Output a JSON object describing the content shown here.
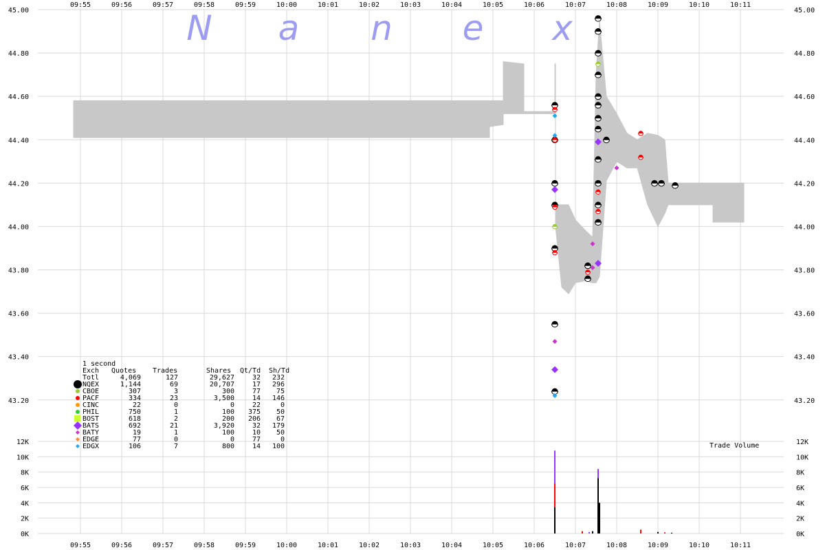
{
  "chart_data": {
    "type": "scatter",
    "title": "",
    "watermark": [
      "N",
      "a",
      "n",
      "e",
      "x"
    ],
    "x_times": [
      "09:55",
      "09:56",
      "09:57",
      "09:58",
      "09:59",
      "10:00",
      "10:01",
      "10:02",
      "10:03",
      "10:04",
      "10:05",
      "10:06",
      "10:07",
      "10:08",
      "10:09",
      "10:10",
      "10:11"
    ],
    "price_axis": {
      "ylim": [
        43.12,
        45.0
      ],
      "ticks": [
        "45.00",
        "44.80",
        "44.60",
        "44.40",
        "44.20",
        "44.00",
        "43.80",
        "43.60",
        "43.40",
        "43.20"
      ]
    },
    "volume_axis": {
      "label": "Trade Volume",
      "ylim": [
        0,
        12000
      ],
      "ticks": [
        "12K",
        "10K",
        "8K",
        "6K",
        "4K",
        "2K",
        "0K"
      ]
    },
    "grid": true,
    "colors": {
      "nbbo_band": "#c8c8c8",
      "grid": "#d8d8d8",
      "watermark": "#9c9cf0",
      "NQEX": "#000000",
      "PACF": "#ff0000",
      "BATS": "#9933ff",
      "BATY": "#cc33cc",
      "EDGX": "#22aaee",
      "CBOE": "#99cc33",
      "PHIL": "#33cc33",
      "BOST": "#ccff33",
      "CINC": "#ff9900",
      "EDGE": "#ff8833"
    },
    "nbbo_band": [
      [
        "09:54:50",
        44.41,
        44.58
      ],
      [
        "10:04:55",
        44.41,
        44.58
      ],
      [
        "10:04:55",
        44.46,
        44.58
      ],
      [
        "10:05:15",
        44.47,
        44.58
      ],
      [
        "10:05:15",
        44.52,
        44.76
      ],
      [
        "10:05:45",
        44.52,
        44.75
      ],
      [
        "10:05:45",
        44.52,
        44.53
      ],
      [
        "10:06:30",
        44.52,
        44.53
      ],
      [
        "10:06:30",
        44.52,
        44.75
      ],
      [
        "10:06:31",
        44.52,
        44.75
      ],
      [
        "10:06:31",
        44.0,
        44.1
      ],
      [
        "10:06:40",
        43.72,
        44.1
      ],
      [
        "10:06:50",
        43.69,
        44.1
      ],
      [
        "10:07:00",
        43.74,
        44.03
      ],
      [
        "10:07:15",
        43.75,
        43.98
      ],
      [
        "10:07:25",
        43.74,
        43.95
      ],
      [
        "10:07:30",
        43.74,
        44.7
      ],
      [
        "10:07:35",
        43.77,
        44.95
      ],
      [
        "10:07:45",
        44.21,
        44.6
      ],
      [
        "10:08:00",
        44.3,
        44.52
      ],
      [
        "10:08:15",
        44.27,
        44.43
      ],
      [
        "10:08:30",
        44.27,
        44.4
      ],
      [
        "10:08:45",
        44.1,
        44.43
      ],
      [
        "10:09:00",
        44.0,
        44.42
      ],
      [
        "10:09:10",
        44.06,
        44.4
      ],
      [
        "10:09:15",
        44.1,
        44.2
      ],
      [
        "10:10:20",
        44.1,
        44.2
      ],
      [
        "10:10:20",
        44.02,
        44.2
      ],
      [
        "10:11:05",
        44.02,
        44.2
      ]
    ],
    "series": [
      {
        "name": "NQEX",
        "points": [
          [
            "10:06:30",
            44.56
          ],
          [
            "10:06:30",
            44.4
          ],
          [
            "10:06:30",
            44.2
          ],
          [
            "10:06:30",
            44.1
          ],
          [
            "10:06:30",
            43.9
          ],
          [
            "10:06:30",
            43.55
          ],
          [
            "10:06:30",
            43.24
          ],
          [
            "10:07:33",
            44.96
          ],
          [
            "10:07:33",
            44.9
          ],
          [
            "10:07:33",
            44.8
          ],
          [
            "10:07:33",
            44.7
          ],
          [
            "10:07:33",
            44.6
          ],
          [
            "10:07:33",
            44.56
          ],
          [
            "10:07:33",
            44.5
          ],
          [
            "10:07:33",
            44.45
          ],
          [
            "10:07:33",
            44.31
          ],
          [
            "10:07:33",
            44.2
          ],
          [
            "10:07:33",
            44.1
          ],
          [
            "10:07:33",
            44.02
          ],
          [
            "10:07:18",
            43.82
          ],
          [
            "10:07:18",
            43.76
          ],
          [
            "10:07:45",
            44.4
          ],
          [
            "10:08:55",
            44.2
          ],
          [
            "10:09:05",
            44.2
          ],
          [
            "10:09:25",
            44.19
          ]
        ]
      },
      {
        "name": "PACF",
        "points": [
          [
            "10:06:30",
            44.54
          ],
          [
            "10:06:30",
            44.4
          ],
          [
            "10:06:30",
            44.09
          ],
          [
            "10:06:30",
            43.88
          ],
          [
            "10:07:33",
            44.16
          ],
          [
            "10:07:33",
            44.07
          ],
          [
            "10:07:18",
            43.79
          ],
          [
            "10:08:35",
            44.43
          ],
          [
            "10:08:35",
            44.32
          ]
        ]
      },
      {
        "name": "BATS",
        "points": [
          [
            "10:06:30",
            44.17
          ],
          [
            "10:06:30",
            43.34
          ],
          [
            "10:07:33",
            44.39
          ],
          [
            "10:07:33",
            43.83
          ]
        ]
      },
      {
        "name": "BATY",
        "points": [
          [
            "10:06:30",
            43.47
          ],
          [
            "10:07:25",
            43.92
          ],
          [
            "10:07:25",
            43.81
          ],
          [
            "10:08:00",
            44.27
          ]
        ]
      },
      {
        "name": "EDGX",
        "points": [
          [
            "10:06:30",
            44.51
          ],
          [
            "10:06:30",
            44.42
          ],
          [
            "10:06:30",
            43.22
          ]
        ]
      },
      {
        "name": "CBOE",
        "points": [
          [
            "10:06:30",
            44.0
          ],
          [
            "10:07:33",
            44.75
          ]
        ]
      }
    ],
    "volume": [
      [
        "10:06:30",
        10800,
        "BATS"
      ],
      [
        "10:06:30",
        6500,
        "PACF"
      ],
      [
        "10:06:30",
        3400,
        "NQEX"
      ],
      [
        "10:07:33",
        8400,
        "BATS"
      ],
      [
        "10:07:33",
        7200,
        "NQEX"
      ],
      [
        "10:07:35",
        4000,
        "NQEX"
      ],
      [
        "10:07:10",
        300,
        "PACF"
      ],
      [
        "10:07:20",
        200,
        "BATS"
      ],
      [
        "10:07:25",
        300,
        "NQEX"
      ],
      [
        "10:08:35",
        500,
        "PACF"
      ],
      [
        "10:09:00",
        200,
        "NQEX"
      ],
      [
        "10:09:10",
        150,
        "PACF"
      ],
      [
        "10:09:20",
        100,
        "NQEX"
      ]
    ],
    "stats_table": {
      "interval": "1 second",
      "headers": [
        "Exch",
        "Quotes",
        "Trades",
        "Shares",
        "Qt/Td",
        "Sh/Td"
      ],
      "rows": [
        {
          "exch": "Totl",
          "quotes": "4,069",
          "trades": "127",
          "shares": "29,627",
          "qt_td": "32",
          "sh_td": "232",
          "color": ""
        },
        {
          "exch": "NQEX",
          "quotes": "1,144",
          "trades": "69",
          "shares": "20,707",
          "qt_td": "17",
          "sh_td": "296",
          "color": "#000000"
        },
        {
          "exch": "CBOE",
          "quotes": "307",
          "trades": "3",
          "shares": "300",
          "qt_td": "77",
          "sh_td": "75",
          "color": "#99cc33"
        },
        {
          "exch": "PACF",
          "quotes": "334",
          "trades": "23",
          "shares": "3,500",
          "qt_td": "14",
          "sh_td": "146",
          "color": "#ff0000"
        },
        {
          "exch": "CINC",
          "quotes": "22",
          "trades": "0",
          "shares": "0",
          "qt_td": "22",
          "sh_td": "0",
          "color": "#ff9900"
        },
        {
          "exch": "PHIL",
          "quotes": "750",
          "trades": "1",
          "shares": "100",
          "qt_td": "375",
          "sh_td": "50",
          "color": "#33cc33"
        },
        {
          "exch": "BOST",
          "quotes": "618",
          "trades": "2",
          "shares": "200",
          "qt_td": "206",
          "sh_td": "67",
          "color": "#ccff33"
        },
        {
          "exch": "BATS",
          "quotes": "692",
          "trades": "21",
          "shares": "3,920",
          "qt_td": "32",
          "sh_td": "179",
          "color": "#9933ff"
        },
        {
          "exch": "BATY",
          "quotes": "19",
          "trades": "1",
          "shares": "100",
          "qt_td": "10",
          "sh_td": "50",
          "color": "#cc33cc"
        },
        {
          "exch": "EDGE",
          "quotes": "77",
          "trades": "0",
          "shares": "0",
          "qt_td": "77",
          "sh_td": "0",
          "color": "#ff8833"
        },
        {
          "exch": "EDGX",
          "quotes": "106",
          "trades": "7",
          "shares": "800",
          "qt_td": "14",
          "sh_td": "100",
          "color": "#22aaee"
        }
      ]
    }
  }
}
